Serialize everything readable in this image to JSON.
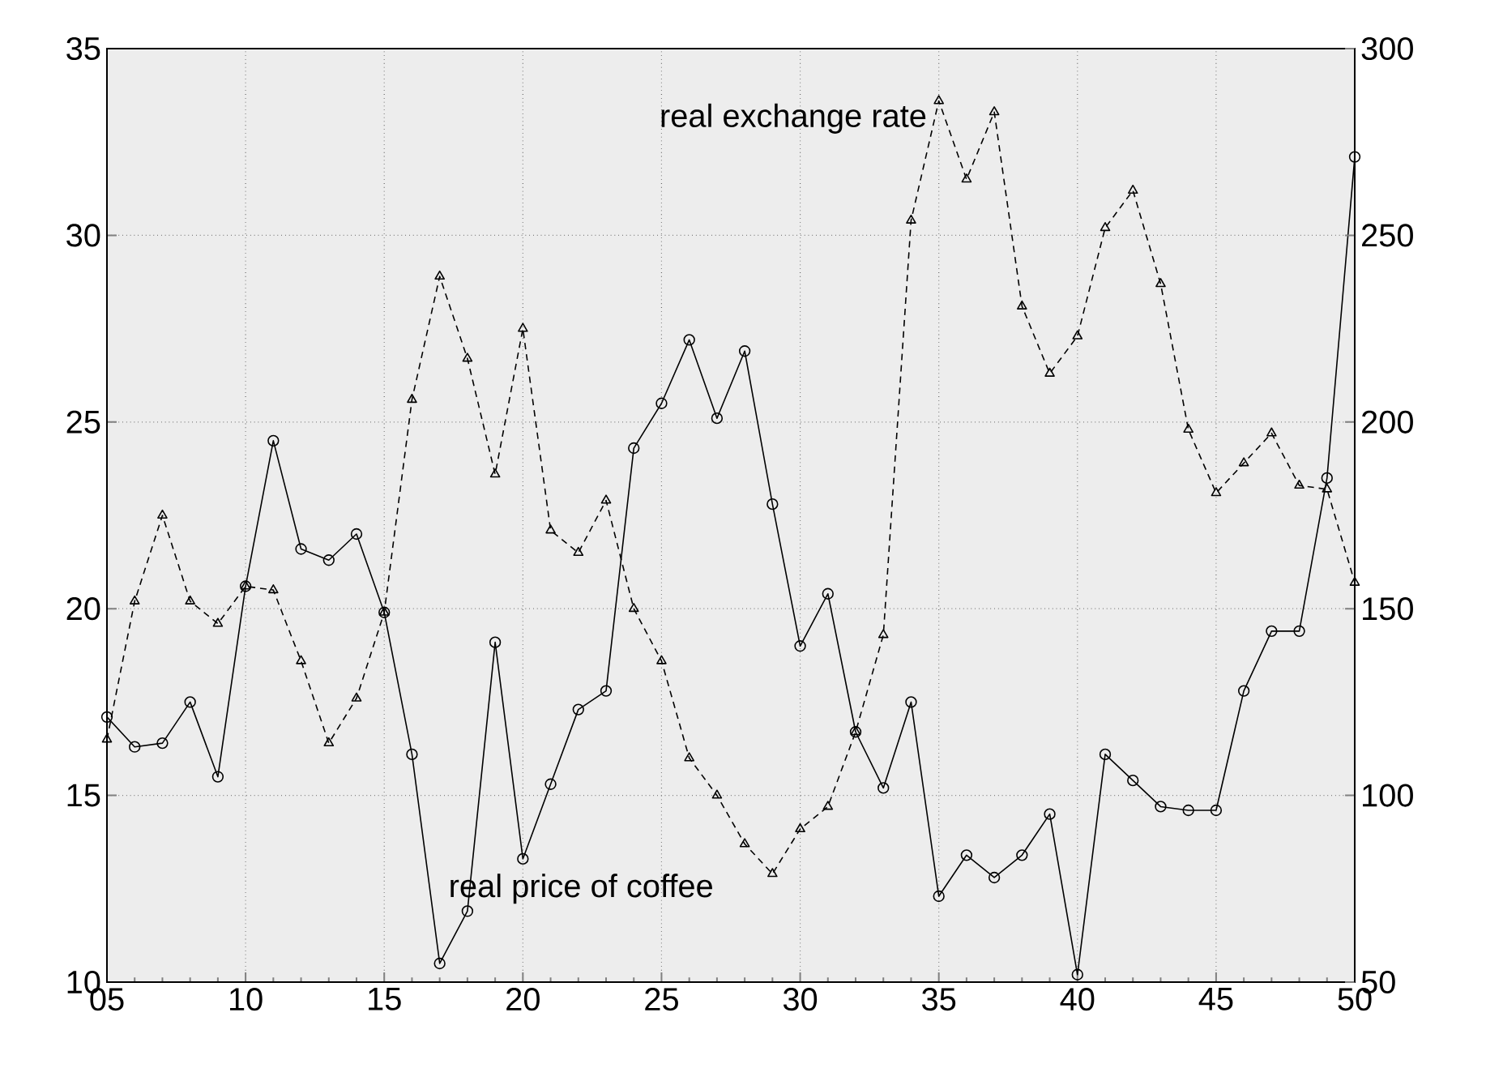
{
  "chart_data": {
    "type": "line",
    "x": [
      5,
      6,
      7,
      8,
      9,
      10,
      11,
      12,
      13,
      14,
      15,
      16,
      17,
      18,
      19,
      20,
      21,
      22,
      23,
      24,
      25,
      26,
      27,
      28,
      29,
      30,
      31,
      32,
      33,
      34,
      35,
      36,
      37,
      38,
      39,
      40,
      41,
      42,
      43,
      44,
      45,
      46,
      47,
      48,
      49,
      50
    ],
    "series": [
      {
        "name": "real price of coffee",
        "color": "#000000",
        "marker": "circle",
        "line_style": "solid",
        "values": [
          17.1,
          16.3,
          16.4,
          17.5,
          15.5,
          20.6,
          24.5,
          21.6,
          21.3,
          22.0,
          19.9,
          16.1,
          10.5,
          11.9,
          19.1,
          13.3,
          15.3,
          17.3,
          17.8,
          24.3,
          25.5,
          27.2,
          25.1,
          26.9,
          22.8,
          19.0,
          20.4,
          16.7,
          15.2,
          17.5,
          12.3,
          13.4,
          12.8,
          13.4,
          14.5,
          10.2,
          16.1,
          15.4,
          14.7,
          14.6,
          14.6,
          17.8,
          19.4,
          19.4,
          23.5,
          32.1
        ]
      },
      {
        "name": "real exchange rate",
        "color": "#000000",
        "marker": "triangle",
        "line_style": "dashed",
        "axis": "y2",
        "values": [
          115,
          152,
          175,
          152,
          146,
          156,
          155,
          136,
          114,
          126,
          149,
          206,
          239,
          217,
          186,
          225,
          171,
          165,
          179,
          150,
          136,
          110,
          100,
          87,
          79,
          91,
          97,
          117,
          143,
          254,
          286,
          265,
          283,
          231,
          213,
          223,
          252,
          262,
          237,
          198,
          181,
          189,
          197,
          183,
          182,
          157
        ]
      }
    ],
    "xlim": [
      5,
      50
    ],
    "xticks": [
      {
        "value": 5,
        "label": "05"
      },
      10,
      15,
      20,
      25,
      30,
      35,
      40,
      45,
      50
    ],
    "ylim": [
      10,
      35
    ],
    "yticks": [
      10,
      15,
      20,
      25,
      30,
      35
    ],
    "y2lim": [
      50,
      300
    ],
    "y2ticks": [
      50,
      100,
      150,
      200,
      250,
      300
    ],
    "grid": true,
    "legend": false
  }
}
